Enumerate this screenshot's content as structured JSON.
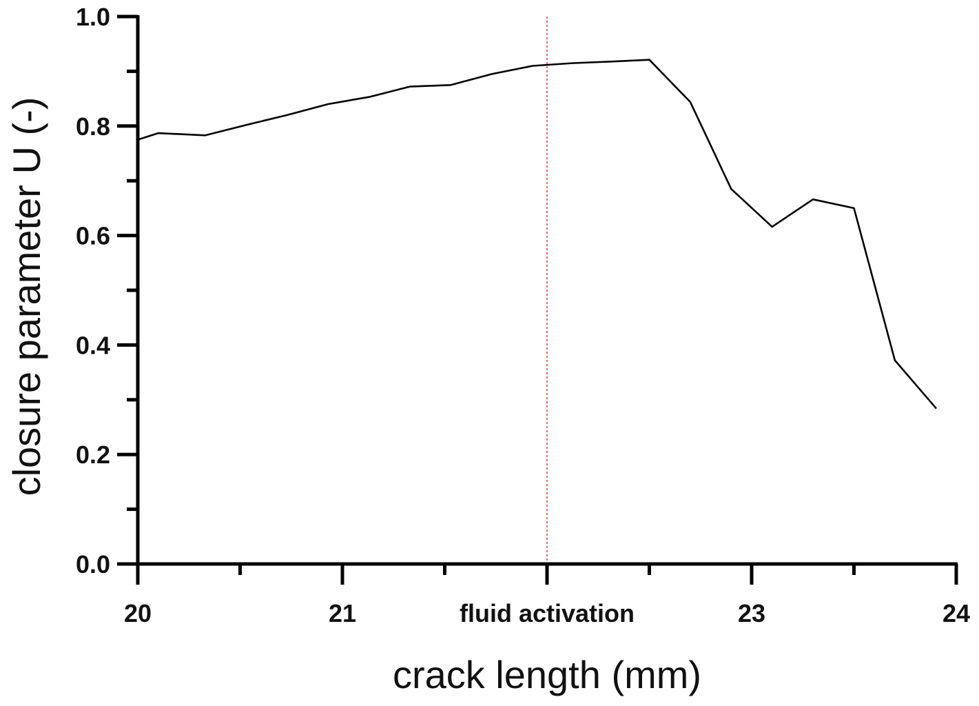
{
  "chart_data": {
    "type": "line",
    "xlabel": "crack length (mm)",
    "ylabel": "closure parameter U (-)",
    "xlim": [
      20,
      24
    ],
    "ylim": [
      0,
      1
    ],
    "x_tick_labels": [
      {
        "value": 20,
        "label": "20"
      },
      {
        "value": 21,
        "label": "21"
      },
      {
        "value": 22,
        "label": "fluid activation"
      },
      {
        "value": 23,
        "label": "23"
      },
      {
        "value": 24,
        "label": "24"
      }
    ],
    "x_minor_ticks": [
      20.5,
      21.5,
      22.5,
      23.5
    ],
    "y_tick_labels": [
      {
        "value": 0.0,
        "label": "0.0"
      },
      {
        "value": 0.2,
        "label": "0.2"
      },
      {
        "value": 0.4,
        "label": "0.4"
      },
      {
        "value": 0.6,
        "label": "0.6"
      },
      {
        "value": 0.8,
        "label": "0.8"
      },
      {
        "value": 1.0,
        "label": "1.0"
      }
    ],
    "y_minor_ticks": [
      0.1,
      0.3,
      0.5,
      0.7,
      0.9
    ],
    "reference_line": {
      "x": 22,
      "color": "#e8413c",
      "style": "dotted"
    },
    "series": [
      {
        "color": "#000000",
        "x": [
          20.0,
          20.1,
          20.33,
          20.53,
          20.73,
          20.93,
          21.13,
          21.33,
          21.53,
          21.73,
          21.93,
          22.13,
          22.33,
          22.5,
          22.7,
          22.9,
          23.1,
          23.3,
          23.5,
          23.7,
          23.9
        ],
        "y": [
          0.775,
          0.787,
          0.783,
          0.802,
          0.82,
          0.84,
          0.853,
          0.872,
          0.875,
          0.895,
          0.91,
          0.915,
          0.918,
          0.921,
          0.844,
          0.685,
          0.616,
          0.666,
          0.65,
          0.372,
          0.285
        ]
      }
    ]
  }
}
